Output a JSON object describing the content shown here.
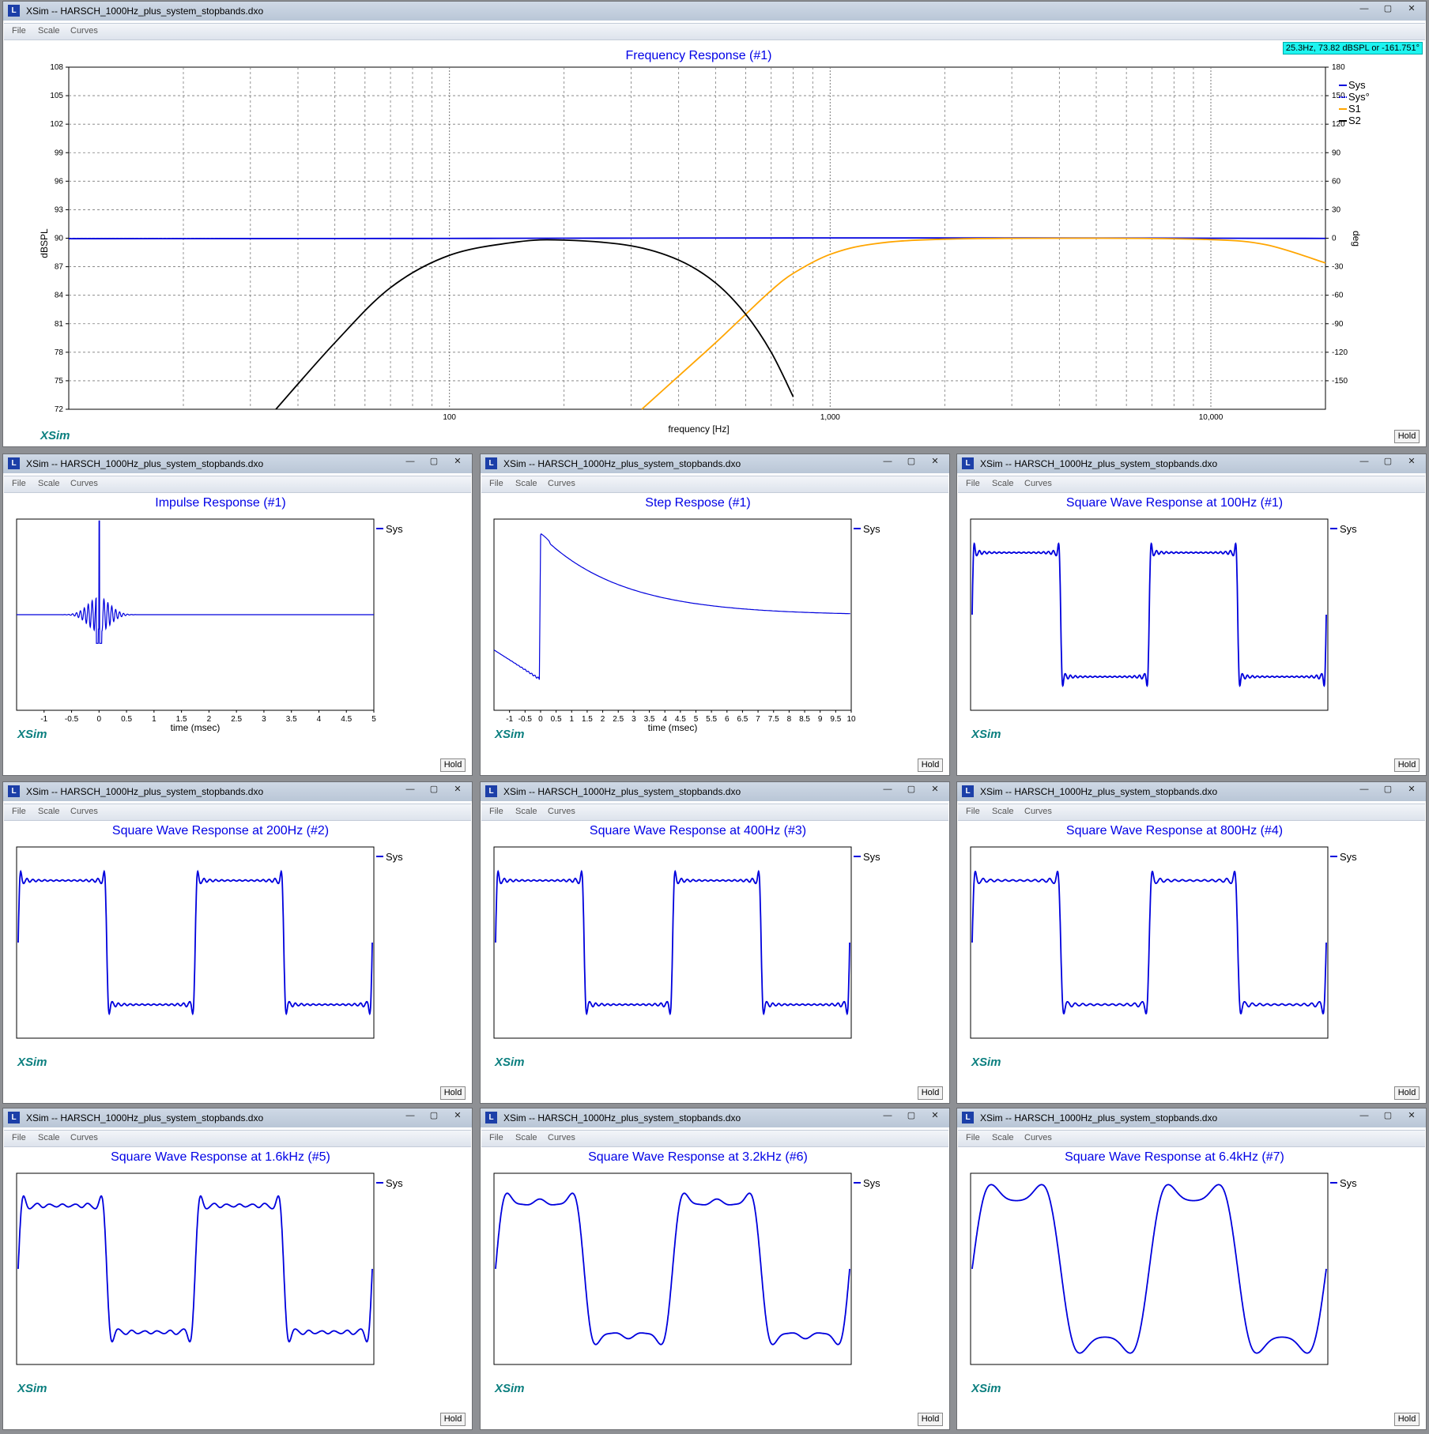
{
  "app": {
    "title": "XSim -- HARSCH_1000Hz_plus_system_stopbands.dxo",
    "brand": "XSim",
    "hold_label": "Hold"
  },
  "menu": {
    "file": "File",
    "scale": "Scale",
    "curves": "Curves"
  },
  "window_controls": {
    "minimize": "—",
    "maximize": "▢",
    "close": "✕"
  },
  "main": {
    "cursor_readout": "25.3Hz, 73.82 dBSPL or -161.751°",
    "chart_data": {
      "type": "line",
      "title": "Frequency Response (#1)",
      "xlabel": "frequency [Hz]",
      "ylabel": "dBSPL",
      "y2label": "deg",
      "xscale": "log",
      "xlim": [
        10,
        20000
      ],
      "ylim": [
        72,
        108
      ],
      "y2lim": [
        -180,
        180
      ],
      "x_tick_labels": [
        "100",
        "1,000",
        "10,000"
      ],
      "y_ticks": [
        108,
        105,
        102,
        99,
        96,
        93,
        90,
        87,
        84,
        81,
        78,
        75,
        72
      ],
      "y2_ticks": [
        180,
        150,
        120,
        90,
        60,
        30,
        0,
        -30,
        -60,
        -90,
        -120,
        -150
      ],
      "grid": true,
      "legend_position": "right",
      "series": [
        {
          "name": "Sys",
          "color": "#0000dd",
          "style": "solid",
          "x": [
            10,
            20,
            50,
            100,
            200,
            500,
            1000,
            2000,
            5000,
            10000,
            20000
          ],
          "y": [
            89.95,
            89.96,
            89.97,
            89.98,
            90.0,
            90.02,
            90.03,
            90.03,
            90.02,
            90.0,
            89.98
          ]
        },
        {
          "name": "Sys°",
          "color": "#0000dd",
          "style": "dashed",
          "x": [
            10,
            100,
            1000,
            10000,
            20000
          ],
          "y": [
            0,
            0,
            0,
            0,
            0
          ]
        },
        {
          "name": "S1",
          "color": "#ffa500",
          "style": "solid",
          "x": [
            320,
            400,
            500,
            600,
            700,
            800,
            1000,
            1300,
            2000,
            5000,
            10000,
            14000,
            20000
          ],
          "y": [
            72,
            75.5,
            79,
            82,
            84.5,
            86.3,
            88.3,
            89.4,
            89.9,
            90.0,
            89.85,
            89.3,
            87.4
          ]
        },
        {
          "name": "S2",
          "color": "#000000",
          "style": "solid",
          "x": [
            35,
            50,
            70,
            100,
            150,
            200,
            300,
            400,
            500,
            600,
            700,
            800
          ],
          "y": [
            72,
            79,
            84.8,
            88.2,
            89.6,
            89.8,
            89.2,
            87.7,
            85.3,
            82,
            78,
            73.3
          ]
        }
      ]
    }
  },
  "panels": [
    {
      "title": "Impulse Response (#1)",
      "legend": "Sys",
      "xlabel": "time (msec)",
      "x_ticks": [
        "-1",
        "-0.5",
        "0",
        "0.5",
        "1",
        "1.5",
        "2",
        "2.5",
        "3",
        "3.5",
        "4",
        "4.5",
        "5"
      ],
      "chart_data": {
        "type": "line",
        "xlim": [
          -1.5,
          5
        ],
        "series": [
          {
            "name": "Sys",
            "x": [
              -1.5,
              -0.6,
              -0.3,
              -0.1,
              0,
              0.05,
              0.1,
              0.3,
              0.6,
              5
            ],
            "y": [
              0,
              0,
              0.02,
              0.3,
              1.0,
              -0.3,
              0.25,
              0.02,
              0,
              0
            ]
          }
        ]
      }
    },
    {
      "title": "Step Respose (#1)",
      "legend": "Sys",
      "xlabel": "time (msec)",
      "x_ticks": [
        "-1",
        "-0.5",
        "0",
        "0.5",
        "1",
        "1.5",
        "2",
        "2.5",
        "3",
        "3.5",
        "4",
        "4.5",
        "5",
        "5.5",
        "6",
        "6.5",
        "7",
        "7.5",
        "8",
        "8.5",
        "9",
        "9.5",
        "10"
      ],
      "chart_data": {
        "type": "line",
        "xlim": [
          -1.5,
          10
        ],
        "series": [
          {
            "name": "Sys",
            "x": [
              -1.5,
              -0.05,
              0,
              0.1,
              1,
              2,
              3,
              4,
              5,
              6,
              7,
              8,
              9,
              10
            ],
            "y": [
              0.0,
              -0.25,
              1.0,
              0.98,
              0.8,
              0.62,
              0.5,
              0.42,
              0.37,
              0.34,
              0.32,
              0.31,
              0.3,
              0.3
            ]
          }
        ]
      }
    },
    {
      "title": "Square Wave Response at 100Hz (#1)",
      "legend": "Sys"
    },
    {
      "title": "Square Wave Response at 200Hz (#2)",
      "legend": "Sys"
    },
    {
      "title": "Square Wave Response at 400Hz (#3)",
      "legend": "Sys"
    },
    {
      "title": "Square Wave Response at 800Hz (#4)",
      "legend": "Sys"
    },
    {
      "title": "Square Wave Response at 1.6kHz (#5)",
      "legend": "Sys"
    },
    {
      "title": "Square Wave Response at 3.2kHz (#6)",
      "legend": "Sys"
    },
    {
      "title": "Square Wave Response at 6.4kHz (#7)",
      "legend": "Sys"
    }
  ],
  "colors": {
    "trace": "#0000dd",
    "title": "#0000e6",
    "brand": "#0b7f7f",
    "s1": "#ffa500",
    "s2": "#000000",
    "cursor_bg": "#1ef4f0"
  }
}
